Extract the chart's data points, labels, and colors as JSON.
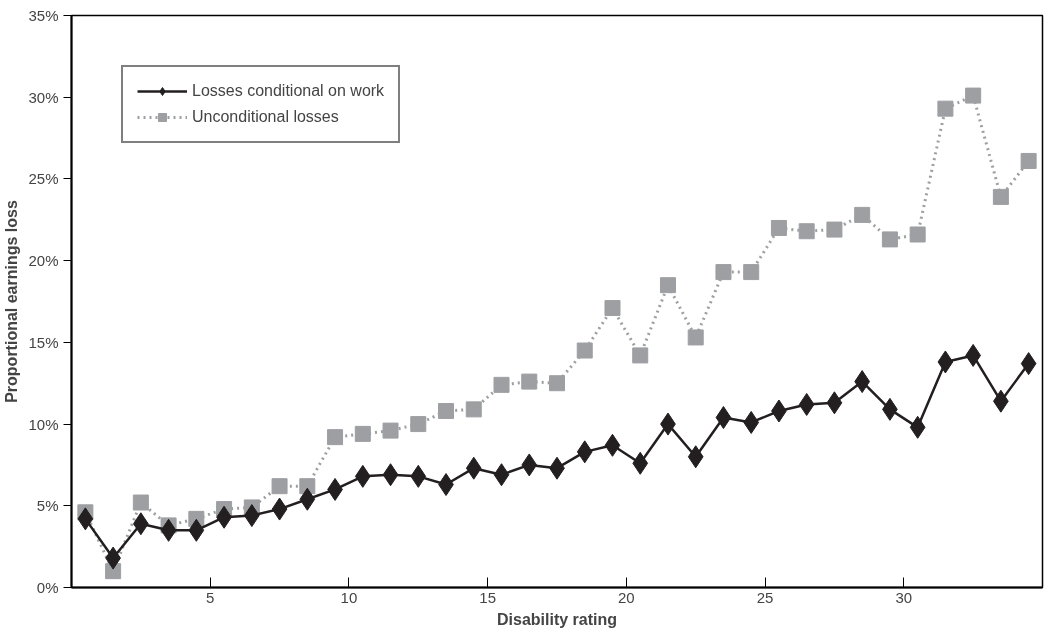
{
  "chart_data": {
    "type": "line",
    "xlabel": "Disability rating",
    "ylabel": "Proportional earnings loss",
    "x": [
      0.5,
      1.5,
      2.5,
      3.5,
      4.5,
      5.5,
      6.5,
      7.5,
      8.5,
      9.5,
      10.5,
      11.5,
      12.5,
      13.5,
      14.5,
      15.5,
      16.5,
      17.5,
      18.5,
      19.5,
      20.5,
      21.5,
      22.5,
      23.5,
      24.5,
      25.5,
      26.5,
      27.5,
      28.5,
      29.5,
      30.5,
      31.5,
      32.5,
      33.5,
      34.5
    ],
    "series": [
      {
        "name": "Losses conditional on work",
        "color": "#231f20",
        "marker": "diamond",
        "line_style": "solid",
        "values": [
          4.2,
          1.8,
          3.9,
          3.5,
          3.5,
          4.3,
          4.4,
          4.8,
          5.4,
          6.0,
          6.8,
          6.9,
          6.8,
          6.3,
          7.3,
          6.9,
          7.5,
          7.3,
          8.3,
          8.7,
          7.6,
          10.0,
          8.0,
          10.4,
          10.1,
          10.8,
          11.2,
          11.3,
          12.6,
          10.9,
          9.8,
          13.8,
          14.2,
          11.4,
          13.7
        ]
      },
      {
        "name": "Unconditional losses",
        "color": "#9d9fa2",
        "marker": "square",
        "line_style": "dotted",
        "values": [
          4.6,
          1.0,
          5.2,
          3.8,
          4.2,
          4.8,
          4.9,
          6.2,
          6.2,
          9.2,
          9.4,
          9.6,
          10.0,
          10.8,
          10.9,
          12.4,
          12.6,
          12.5,
          14.5,
          17.1,
          14.2,
          18.5,
          15.3,
          19.3,
          19.3,
          22.0,
          21.8,
          21.9,
          22.8,
          21.3,
          21.6,
          29.3,
          30.1,
          23.9,
          26.1
        ]
      }
    ],
    "xlim": [
      0,
      35
    ],
    "xticks": [
      5,
      10,
      15,
      20,
      25,
      30
    ],
    "ylim": [
      0,
      35
    ],
    "yticks": [
      {
        "value": 0,
        "label": "0%"
      },
      {
        "value": 5,
        "label": "5%"
      },
      {
        "value": 10,
        "label": "10%"
      },
      {
        "value": 15,
        "label": "15%"
      },
      {
        "value": 20,
        "label": "20%"
      },
      {
        "value": 25,
        "label": "25%"
      },
      {
        "value": 30,
        "label": "30%"
      },
      {
        "value": 35,
        "label": "35%"
      }
    ],
    "grid": false,
    "legend": "top left"
  }
}
